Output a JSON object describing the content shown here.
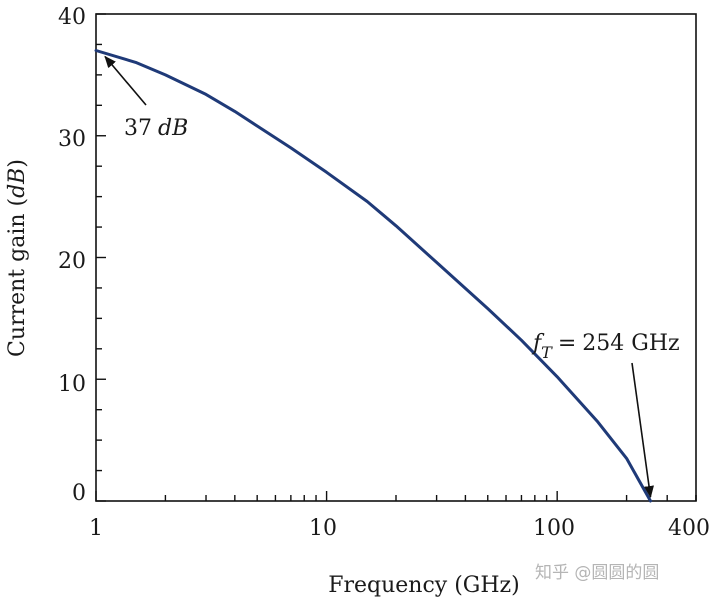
{
  "chart_data": {
    "type": "line",
    "x_scale": "log",
    "xlim": [
      1,
      400
    ],
    "ylim": [
      0,
      40
    ],
    "xlabel": "Frequency (GHz)",
    "ylabel_prefix": "Current gain (",
    "ylabel_unit": "dB",
    "ylabel_suffix": ")",
    "x_tick_labels": [
      "1",
      "10",
      "100",
      "400"
    ],
    "y_tick_labels": [
      "0",
      "10",
      "20",
      "30",
      "40"
    ],
    "series": [
      {
        "color": "#1f3a78",
        "x": [
          1,
          1.5,
          2,
          3,
          4,
          5,
          7,
          10,
          15,
          20,
          30,
          50,
          70,
          100,
          150,
          200,
          254
        ],
        "y": [
          37,
          36,
          35,
          33.4,
          32,
          30.8,
          29,
          27,
          24.6,
          22.6,
          19.6,
          15.8,
          13.2,
          10.2,
          6.5,
          3.5,
          0
        ]
      }
    ],
    "annotations": {
      "low_freq": {
        "value": "37",
        "unit": "dB",
        "x": 1,
        "y": 37
      },
      "ft": {
        "symbol_base": "f",
        "symbol_sub": "T",
        "equals": "=",
        "value": "254 GHz",
        "x": 254,
        "y": 0
      }
    },
    "grid": false
  },
  "watermark": "知乎 @圆圆的圆"
}
